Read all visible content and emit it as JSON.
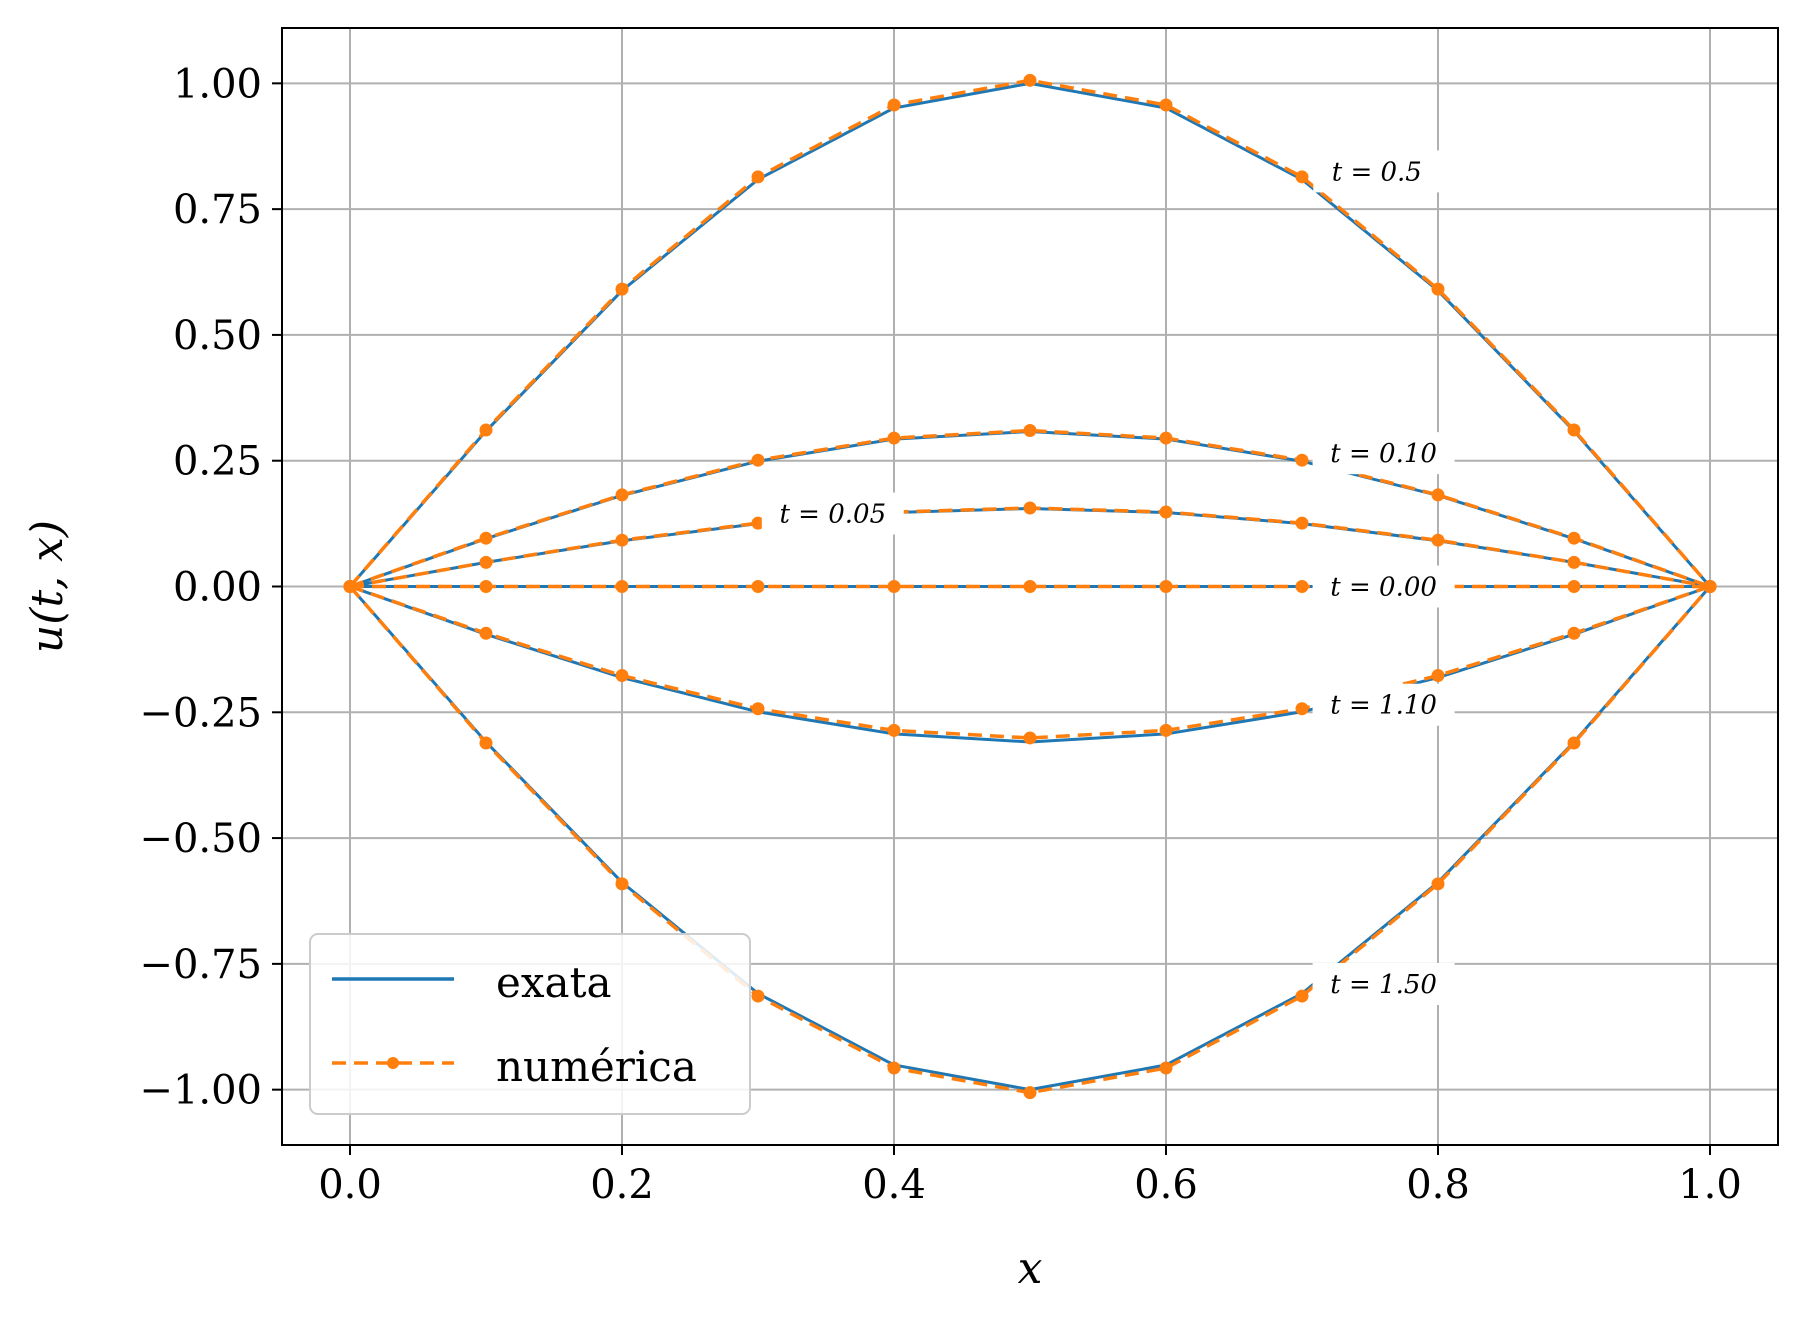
{
  "colors": {
    "exact": "#1f77b4",
    "numeric": "#ff7f0e",
    "grid": "#b0b0b0",
    "axes": "#000000"
  },
  "chart_data": {
    "type": "line",
    "title": "",
    "xlabel": "x",
    "ylabel": "u(t, x)",
    "xlim": [
      -0.05,
      1.05
    ],
    "ylim": [
      -1.11,
      1.11
    ],
    "grid": true,
    "legend_position": "lower-left",
    "x_ticks": [
      0.0,
      0.2,
      0.4,
      0.6,
      0.8,
      1.0
    ],
    "x_tick_labels": [
      "0.0",
      "0.2",
      "0.4",
      "0.6",
      "0.8",
      "1.0"
    ],
    "y_ticks": [
      1.0,
      0.75,
      0.5,
      0.25,
      0.0,
      -0.25,
      -0.5,
      -0.75,
      -1.0
    ],
    "y_tick_labels": [
      "1.00",
      "0.75",
      "0.50",
      "0.25",
      "0.00",
      "−0.25",
      "−0.50",
      "−0.75",
      "−1.00"
    ],
    "legend": [
      {
        "label": "exata",
        "style": "solid"
      },
      {
        "label": "numérica",
        "style": "dashed-marker"
      }
    ],
    "x": [
      0.0,
      0.1,
      0.2,
      0.3,
      0.4,
      0.5,
      0.6,
      0.7,
      0.8,
      0.9,
      1.0
    ],
    "curves": [
      {
        "label": "t = 0.00",
        "label_x": 0.76,
        "label_y": 0.0,
        "exact": [
          0,
          0,
          0,
          0,
          0,
          0,
          0,
          0,
          0,
          0,
          0
        ],
        "numeric": [
          0,
          0,
          0,
          0,
          0,
          0,
          0,
          0,
          0,
          0,
          0
        ]
      },
      {
        "label": "t = 0.05",
        "label_x": 0.355,
        "label_y": 0.145,
        "exact": [
          0,
          0.048,
          0.091,
          0.125,
          0.147,
          0.155,
          0.147,
          0.125,
          0.091,
          0.048,
          0
        ],
        "numeric": [
          0,
          0.048,
          0.092,
          0.126,
          0.148,
          0.156,
          0.148,
          0.126,
          0.092,
          0.048,
          0
        ]
      },
      {
        "label": "t = 0.10",
        "label_x": 0.76,
        "label_y": 0.265,
        "exact": [
          0,
          0.095,
          0.181,
          0.249,
          0.293,
          0.308,
          0.293,
          0.249,
          0.181,
          0.095,
          0
        ],
        "numeric": [
          0,
          0.096,
          0.182,
          0.251,
          0.295,
          0.31,
          0.295,
          0.251,
          0.182,
          0.096,
          0
        ]
      },
      {
        "label": "t = 0.5",
        "label_x": 0.755,
        "label_y": 0.825,
        "exact": [
          0,
          0.309,
          0.588,
          0.809,
          0.951,
          1.0,
          0.951,
          0.809,
          0.588,
          0.309,
          0
        ],
        "numeric": [
          0,
          0.311,
          0.591,
          0.814,
          0.957,
          1.006,
          0.957,
          0.814,
          0.591,
          0.311,
          0
        ]
      },
      {
        "label": "t = 1.10",
        "label_x": 0.76,
        "label_y": -0.235,
        "exact": [
          0,
          -0.095,
          -0.181,
          -0.249,
          -0.293,
          -0.309,
          -0.293,
          -0.249,
          -0.181,
          -0.095,
          0
        ],
        "numeric": [
          0,
          -0.093,
          -0.177,
          -0.243,
          -0.286,
          -0.301,
          -0.286,
          -0.243,
          -0.177,
          -0.093,
          0
        ]
      },
      {
        "label": "t = 1.50",
        "label_x": 0.76,
        "label_y": -0.79,
        "exact": [
          0,
          -0.309,
          -0.588,
          -0.809,
          -0.951,
          -1.0,
          -0.951,
          -0.809,
          -0.588,
          -0.309,
          0
        ],
        "numeric": [
          0,
          -0.311,
          -0.591,
          -0.814,
          -0.957,
          -1.006,
          -0.957,
          -0.814,
          -0.591,
          -0.311,
          0
        ]
      }
    ]
  }
}
